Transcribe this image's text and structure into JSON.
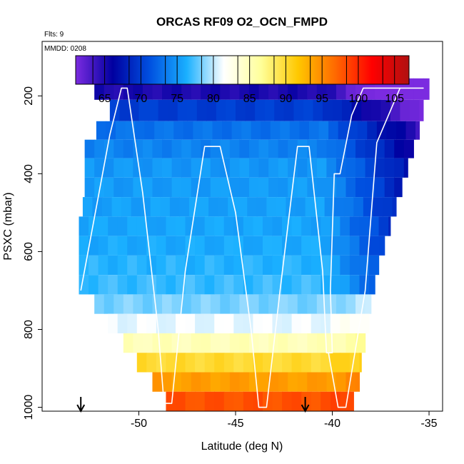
{
  "chart_data": {
    "type": "heatmap",
    "title": "ORCAS RF09 O2_OCN_FMPD",
    "note_flights": "Flts: 9",
    "note_date": "MMDD: 0208",
    "xlabel": "Latitude (deg N)",
    "ylabel": "PSXC (mbar)",
    "xlim": [
      -55,
      -34.3
    ],
    "ylim": [
      1010,
      60
    ],
    "x_ticks": [
      -50,
      -45,
      -40,
      -35
    ],
    "x_tick_labels": [
      "-50",
      "-45",
      "-40",
      "-35"
    ],
    "y_ticks": [
      200,
      400,
      600,
      800,
      1000
    ],
    "y_tick_labels": [
      "200",
      "400",
      "600",
      "800",
      "1000"
    ],
    "colorbar": {
      "min": 61,
      "max": 107,
      "ticks": [
        65,
        70,
        75,
        80,
        85,
        90,
        95,
        100,
        105
      ],
      "tick_labels": [
        "65",
        "70",
        "75",
        "80",
        "85",
        "90",
        "95",
        "100",
        "105"
      ],
      "colors": [
        "#7b2be0",
        "#0000a0",
        "#0050e0",
        "#1ab0ff",
        "#ffffff",
        "#ffff9a",
        "#ffc800",
        "#ff6a00",
        "#ff0000",
        "#b01010"
      ]
    },
    "pressure_bands": [
      {
        "p": 180,
        "lat_start": -52.3,
        "lat_end": -35
      },
      {
        "p": 240,
        "lat_start": -51.5,
        "lat_end": -35.3
      },
      {
        "p": 290,
        "lat_start": -52.2,
        "lat_end": -35.5
      },
      {
        "p": 335,
        "lat_start": -52.8,
        "lat_end": -35.8
      },
      {
        "p": 385,
        "lat_start": -52.8,
        "lat_end": -36.1
      },
      {
        "p": 435,
        "lat_start": -52.8,
        "lat_end": -36.4
      },
      {
        "p": 485,
        "lat_start": -52.9,
        "lat_end": -36.7
      },
      {
        "p": 535,
        "lat_start": -53.1,
        "lat_end": -37.0
      },
      {
        "p": 585,
        "lat_start": -53.1,
        "lat_end": -37.3
      },
      {
        "p": 635,
        "lat_start": -53.1,
        "lat_end": -37.6
      },
      {
        "p": 685,
        "lat_start": -53.1,
        "lat_end": -37.8
      },
      {
        "p": 735,
        "lat_start": -52.3,
        "lat_end": -38.0
      },
      {
        "p": 785,
        "lat_start": -51.6,
        "lat_end": -38.1
      },
      {
        "p": 835,
        "lat_start": -50.8,
        "lat_end": -38.3
      },
      {
        "p": 885,
        "lat_start": -50.1,
        "lat_end": -38.5
      },
      {
        "p": 935,
        "lat_start": -49.3,
        "lat_end": -38.6
      },
      {
        "p": 985,
        "lat_start": -48.6,
        "lat_end": -38.9
      }
    ],
    "value_profile": [
      {
        "p": 180,
        "value": 65
      },
      {
        "p": 240,
        "value": 70
      },
      {
        "p": 290,
        "value": 73
      },
      {
        "p": 385,
        "value": 75
      },
      {
        "p": 585,
        "value": 76
      },
      {
        "p": 685,
        "value": 77
      },
      {
        "p": 735,
        "value": 78.5
      },
      {
        "p": 785,
        "value": 81
      },
      {
        "p": 835,
        "value": 85
      },
      {
        "p": 885,
        "value": 90
      },
      {
        "p": 935,
        "value": 94
      },
      {
        "p": 985,
        "value": 98
      }
    ],
    "flight_track": [
      [
        -53,
        700
      ],
      [
        -51.5,
        300
      ],
      [
        -50.9,
        180
      ],
      [
        -50.6,
        180
      ],
      [
        -49.8,
        450
      ],
      [
        -49.0,
        800
      ],
      [
        -48.7,
        990
      ],
      [
        -48.3,
        990
      ],
      [
        -47.6,
        650
      ],
      [
        -46.6,
        330
      ],
      [
        -45.8,
        330
      ],
      [
        -45.0,
        500
      ],
      [
        -44.2,
        800
      ],
      [
        -43.8,
        1000
      ],
      [
        -43.4,
        1000
      ],
      [
        -42.7,
        700
      ],
      [
        -41.8,
        330
      ],
      [
        -41.2,
        330
      ],
      [
        -40.5,
        650
      ],
      [
        -40.3,
        860
      ],
      [
        -40.0,
        860
      ],
      [
        -40.1,
        700
      ],
      [
        -39.9,
        400
      ],
      [
        -39.6,
        400
      ],
      [
        -39.0,
        250
      ],
      [
        -38.4,
        180
      ],
      [
        -35.3,
        180
      ],
      [
        -36.5,
        180
      ],
      [
        -37.7,
        320
      ],
      [
        -38.3,
        700
      ],
      [
        -38.9,
        880
      ],
      [
        -39.3,
        1000
      ],
      [
        -39.7,
        1000
      ],
      [
        -40.2,
        860
      ]
    ],
    "markers": [
      {
        "lat": -53.0,
        "label": "start"
      },
      {
        "lat": -41.4,
        "label": "end"
      }
    ]
  }
}
